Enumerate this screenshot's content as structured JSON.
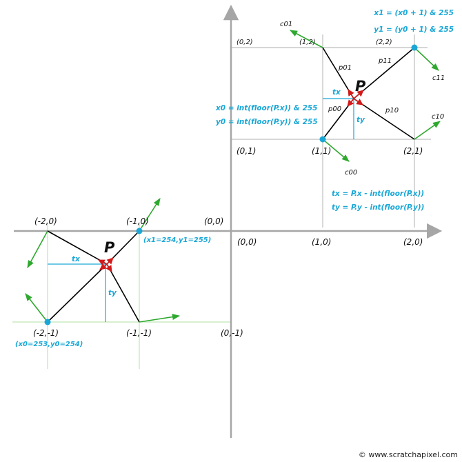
{
  "colors": {
    "axis": "#a6a6a6",
    "grid_gray": "#bdbdbd",
    "grid_green": "#bfe6b8",
    "vector": "#000000",
    "gradient": "#2ea82e",
    "accent": "#1aa7d6",
    "point": "#d11a1a"
  },
  "upper": {
    "corner_labels": [
      "(0,2)",
      "(1,2)",
      "(2,2)",
      "(0,1)",
      "(1,1)",
      "(2,1)"
    ],
    "gradient_labels": [
      "c01",
      "c11",
      "c10",
      "c00"
    ],
    "vector_labels": [
      "p01",
      "p11",
      "p00",
      "p10"
    ],
    "point_label": "P",
    "tx_label": "tx",
    "ty_label": "ty",
    "x1_formula": "x1 = (x0 + 1) & 255",
    "y1_formula": "y1 = (y0 + 1) & 255",
    "x0_formula": "x0 = int(floor(P.x)) & 255",
    "y0_formula": "y0 = int(floor(P.y)) & 255",
    "tx_formula": "tx = P.x - int(floor(P.x))",
    "ty_formula": "ty = P.y - int(floor(P.y))"
  },
  "axes": {
    "labels": [
      "(0,0)",
      "(0,0)",
      "(1,0)",
      "(2,0)",
      "(0,-1)"
    ]
  },
  "lower": {
    "corner_labels": [
      "(-2,0)",
      "(-1,0)",
      "(-2,-1)",
      "(-1,-1)"
    ],
    "x1y1_label": "(x1=254,y1=255)",
    "x0y0_label": "(x0=253,y0=254)",
    "point_label": "P",
    "tx_label": "tx",
    "ty_label": "ty"
  },
  "footer": "© www.scratchapixel.com"
}
